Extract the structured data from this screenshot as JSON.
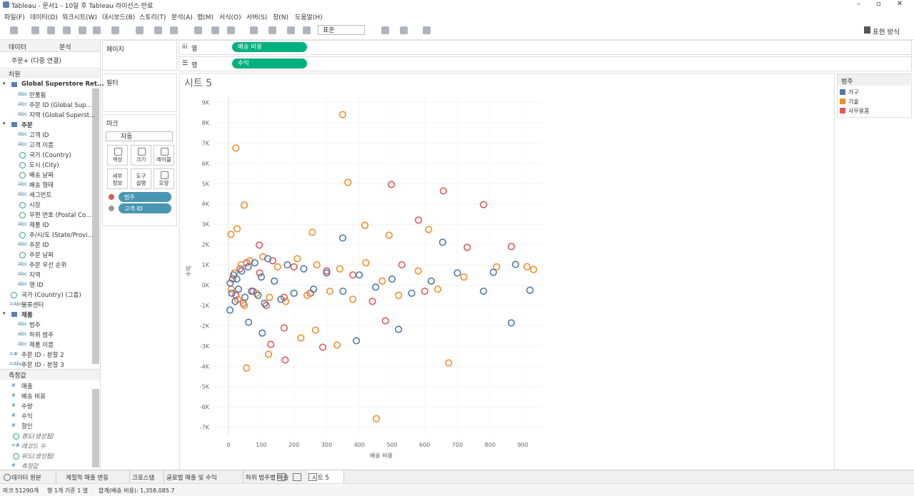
{
  "window_title": "Tableau - 문서1 - 10일 후 Tableau 라이선스 만료",
  "menu": [
    "파일(F)",
    "데이터(D)",
    "워크시트(W)",
    "대시보드(B)",
    "스토리(T)",
    "분석(A)",
    "맵(M)",
    "서식(O)",
    "서버(S)",
    "창(N)",
    "도움말(H)"
  ],
  "toolbar": {
    "mark_size": "표준",
    "show_me": "표현 방식"
  },
  "data_pane": {
    "tabs": [
      "데이터",
      "분석"
    ],
    "source": "주문+ (다중 연결)",
    "dimensions_title": "차원",
    "dimensions": [
      {
        "title": "Global Superstore Ret...",
        "items": [
          {
            "icon": "Abc",
            "label": "반품됨"
          },
          {
            "icon": "Abc",
            "label": "주문 ID (Global Sup..."
          },
          {
            "icon": "Abc",
            "label": "지역 (Global Superst..."
          }
        ]
      },
      {
        "title": "주문",
        "items": [
          {
            "icon": "Abc",
            "label": "고객 ID"
          },
          {
            "icon": "Abc",
            "label": "고객 이름"
          },
          {
            "label": "국가 (Country)"
          },
          {
            "label": "도시 (City)"
          },
          {
            "label": "배송 날짜"
          },
          {
            "icon": "Abc",
            "label": "배송 형태"
          },
          {
            "icon": "Abc",
            "label": "세그먼트"
          },
          {
            "label": "시장"
          },
          {
            "label": "우편 번호 (Postal Co..."
          },
          {
            "icon": "Abc",
            "label": "제품 ID"
          },
          {
            "label": "주/시/도 (State/Provi..."
          },
          {
            "icon": "Abc",
            "label": "주문 ID"
          },
          {
            "label": "주문 날짜"
          },
          {
            "icon": "Abc",
            "label": "주문 우선 순위"
          },
          {
            "icon": "Abc",
            "label": "지역"
          },
          {
            "icon": "Abc",
            "label": "행 ID"
          }
        ]
      },
      {
        "label": "국가 (Country) (그룹)"
      },
      {
        "icon": "=Abc",
        "label": "물류센터"
      },
      {
        "title": "제품",
        "items": [
          {
            "icon": "Abc",
            "label": "범주"
          },
          {
            "icon": "Abc",
            "label": "하위 범주"
          },
          {
            "icon": "Abc",
            "label": "제품 이름"
          }
        ]
      },
      {
        "icon": "=#",
        "label": "주문 ID - 분할 2"
      },
      {
        "icon": "=Abc",
        "label": "주문 ID - 분할 3"
      }
    ],
    "measures_title": "측정값",
    "measures": [
      {
        "icon": "#",
        "label": "매출"
      },
      {
        "icon": "#",
        "label": "배송 비용"
      },
      {
        "icon": "#",
        "label": "수량"
      },
      {
        "icon": "#",
        "label": "수익"
      },
      {
        "icon": "#",
        "label": "할인"
      },
      {
        "label": "경도(생성됨)"
      },
      {
        "icon": "=#",
        "label": "레코드 수"
      },
      {
        "label": "위도(생성됨)"
      },
      {
        "icon": "#",
        "label": "측정값"
      }
    ]
  },
  "shelves": {
    "pages": "페이지",
    "filters": "필터",
    "columns_label": "열",
    "columns": "배송 비용",
    "rows_label": "행",
    "rows": "수익"
  },
  "marks": {
    "title": "마크",
    "type": "자동",
    "buttons": [
      "색상",
      "크기",
      "레이블",
      "세부\n정보",
      "도구\n설명",
      "모양"
    ],
    "pills": [
      "범주",
      "고객 ID"
    ]
  },
  "chart_data": {
    "type": "scatter",
    "title": "시트 5",
    "x_label": "배송 비용",
    "y_label": "수익",
    "xlim": [
      -44,
      961
    ],
    "ylim": [
      -7400,
      9300
    ],
    "xticks": [
      0,
      100,
      200,
      300,
      400,
      500,
      600,
      700,
      800,
      900
    ],
    "yticks": [
      {
        "value": 9000,
        "label": "9K"
      },
      {
        "value": 8000,
        "label": "8K"
      },
      {
        "value": 7000,
        "label": "7K"
      },
      {
        "value": 6000,
        "label": "6K"
      },
      {
        "value": 5000,
        "label": "5K"
      },
      {
        "value": 4000,
        "label": "4K"
      },
      {
        "value": 3000,
        "label": "3K"
      },
      {
        "value": 2000,
        "label": "2K"
      },
      {
        "value": 1000,
        "label": "1K"
      },
      {
        "value": 0,
        "label": "0K"
      },
      {
        "value": -1000,
        "label": "-1K"
      },
      {
        "value": -2000,
        "label": "-2K"
      },
      {
        "value": -3000,
        "label": "-3K"
      },
      {
        "value": -4000,
        "label": "-4K"
      },
      {
        "value": -5000,
        "label": "-5K"
      },
      {
        "value": -6000,
        "label": "-6K"
      },
      {
        "value": -7000,
        "label": "-7K"
      }
    ],
    "grid": true,
    "legend_title": "범주",
    "legend": "right",
    "series": [
      {
        "name": "가구",
        "color": "#4e79a7",
        "x": [
          5,
          10,
          15,
          20,
          25,
          30,
          40,
          50,
          60,
          70,
          80,
          90,
          100,
          110,
          120,
          140,
          160,
          180,
          200,
          230,
          260,
          300,
          350,
          400,
          450,
          500,
          560,
          620,
          700,
          780,
          4,
          61,
          103,
          391,
          520,
          655,
          810,
          865,
          878,
          922,
          349
        ],
        "values": [
          100,
          -400,
          500,
          -800,
          300,
          -200,
          700,
          -600,
          900,
          -300,
          1100,
          -500,
          400,
          -900,
          1300,
          200,
          -700,
          1000,
          -400,
          800,
          -200,
          600,
          -300,
          500,
          -100,
          300,
          -400,
          200,
          600,
          -300,
          -1230,
          -1830,
          -2360,
          -2740,
          -2180,
          2110,
          630,
          -1860,
          1020,
          -250,
          2320
        ]
      },
      {
        "name": "기술",
        "color": "#f28e2b",
        "x": [
          8,
          18,
          28,
          38,
          48,
          65,
          85,
          105,
          125,
          150,
          175,
          210,
          240,
          270,
          310,
          340,
          380,
          420,
          470,
          520,
          580,
          640,
          720,
          820,
          349,
          22,
          365,
          48,
          417,
          256,
          7,
          26,
          491,
          612,
          55,
          452,
          673,
          332,
          122,
          221,
          266,
          933,
          913
        ],
        "values": [
          -200,
          600,
          -700,
          1000,
          -1000,
          1200,
          -400,
          1400,
          -600,
          900,
          -800,
          1300,
          -500,
          1000,
          -300,
          800,
          -700,
          1100,
          200,
          -500,
          700,
          -200,
          400,
          900,
          8400,
          6750,
          5060,
          3940,
          2950,
          2600,
          2500,
          2780,
          2460,
          2740,
          -4080,
          -6580,
          -3830,
          -2950,
          -3410,
          -2600,
          -2220,
          770,
          910
        ]
      },
      {
        "name": "사무용품",
        "color": "#e15759",
        "x": [
          12,
          22,
          35,
          45,
          55,
          75,
          95,
          115,
          135,
          170,
          200,
          250,
          300,
          380,
          440,
          530,
          600,
          498,
          657,
          780,
          581,
          94,
          170,
          129,
          173,
          288,
          865,
          730,
          480
        ],
        "values": [
          300,
          -500,
          800,
          -900,
          1100,
          -300,
          600,
          -1000,
          1200,
          -600,
          900,
          -400,
          700,
          500,
          -800,
          1000,
          -300,
          4960,
          4640,
          3970,
          3200,
          1970,
          -2110,
          -2920,
          -3690,
          -3060,
          1900,
          1860,
          -1760
        ]
      }
    ]
  },
  "sheet_tabs": [
    "데이터 원본",
    "계절적 매출 변동",
    "크로스탭",
    "글로벌 매출 및 수익",
    "하위 범주별 매출",
    "시트 5"
  ],
  "status": {
    "marks": "마크 51290개",
    "rows_cols": "행 1개 기준 1 열",
    "sum": "합계(배송 비용): 1,358,085.7"
  }
}
